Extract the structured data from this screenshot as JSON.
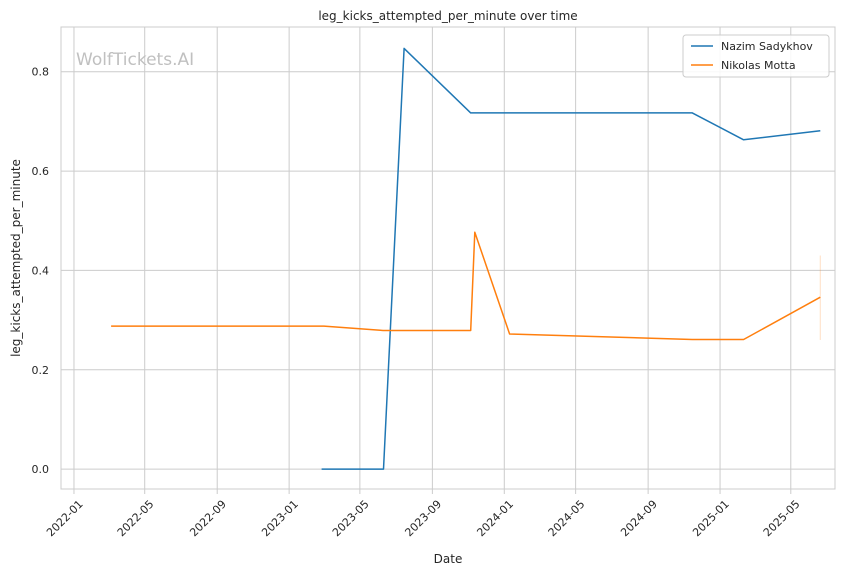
{
  "chart_data": {
    "type": "line",
    "title": "leg_kicks_attempted_per_minute over time",
    "xlabel": "Date",
    "ylabel": "leg_kicks_attempted_per_minute",
    "watermark": "WolfTickets.AI",
    "xlim": [
      "2021-12-10",
      "2025-07-15"
    ],
    "ylim": [
      -0.04,
      0.89
    ],
    "x_ticks": [
      "2022-01-01",
      "2022-05-01",
      "2022-09-01",
      "2023-01-01",
      "2023-05-01",
      "2023-09-01",
      "2024-01-01",
      "2024-05-01",
      "2024-09-01",
      "2025-01-01",
      "2025-05-01"
    ],
    "x_tick_labels": [
      "2022-01",
      "2022-05",
      "2022-09",
      "2023-01",
      "2023-05",
      "2023-09",
      "2024-01",
      "2024-05",
      "2024-09",
      "2025-01",
      "2025-05"
    ],
    "y_ticks": [
      0.0,
      0.2,
      0.4,
      0.6,
      0.8
    ],
    "y_tick_labels": [
      "0.0",
      "0.2",
      "0.4",
      "0.6",
      "0.8"
    ],
    "grid": true,
    "legend_position": "top-right",
    "series": [
      {
        "name": "Nazim Sadykhov",
        "color": "#1f77b4",
        "x": [
          "2023-02-25",
          "2023-06-10",
          "2023-07-15",
          "2023-11-05",
          "2024-11-15",
          "2025-02-10",
          "2025-06-20"
        ],
        "y": [
          0.0,
          0.0,
          0.847,
          0.717,
          0.717,
          0.663,
          0.681
        ]
      },
      {
        "name": "Nikolas Motta",
        "color": "#ff7f0e",
        "x": [
          "2022-03-05",
          "2023-03-01",
          "2023-06-10",
          "2023-11-05",
          "2023-11-12",
          "2024-01-10",
          "2024-11-15",
          "2025-02-10",
          "2025-06-20"
        ],
        "y": [
          0.288,
          0.288,
          0.279,
          0.279,
          0.477,
          0.272,
          0.261,
          0.261,
          0.346
        ]
      }
    ]
  }
}
